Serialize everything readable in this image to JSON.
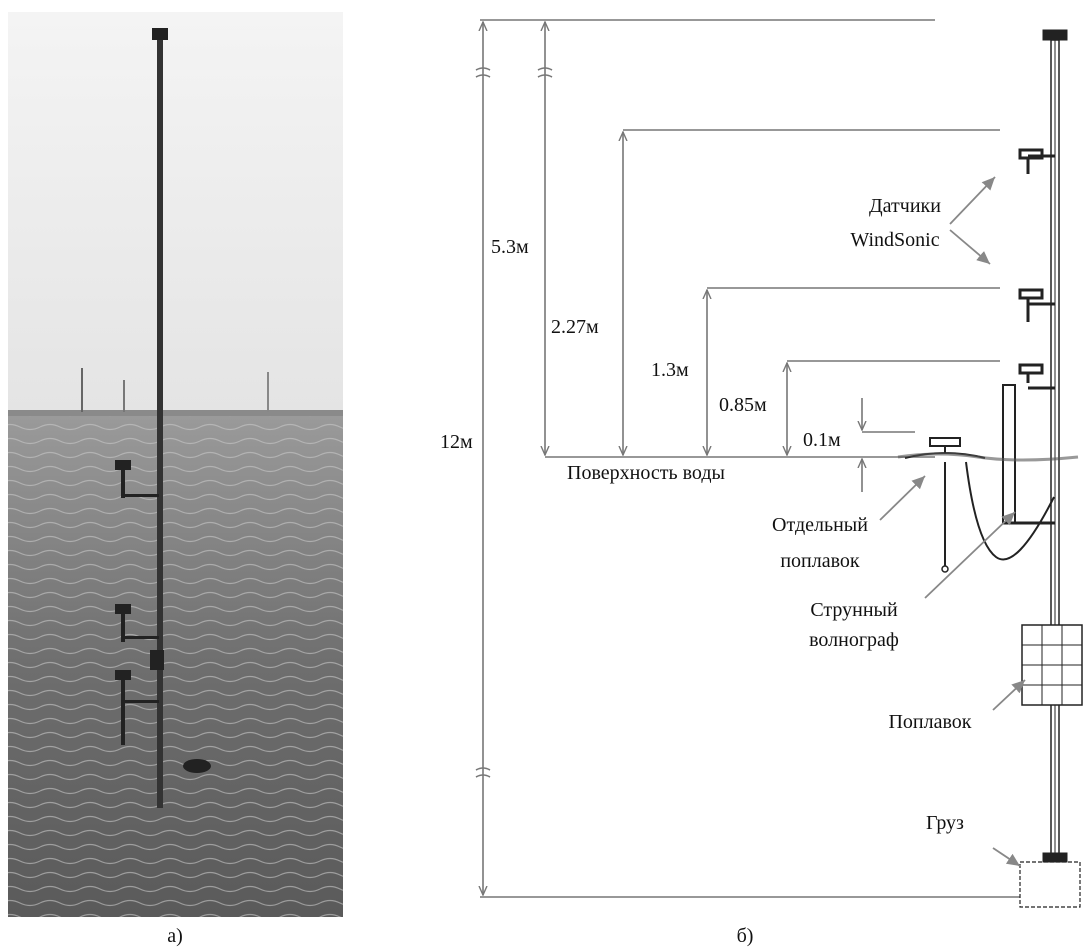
{
  "panels": {
    "photo": {
      "caption": "а)"
    },
    "diagram": {
      "caption": "б)",
      "dimensions": [
        "12м",
        "5.3м",
        "2.27м",
        "1.3м",
        "0.85м",
        "0.1м"
      ],
      "water_surface": "Поверхность воды",
      "labels": [
        {
          "lines": [
            "Датчики",
            "WindSonic"
          ]
        },
        {
          "lines": [
            "Отдельный",
            "поплавок"
          ]
        },
        {
          "lines": [
            "Струнный",
            "волнограф"
          ]
        },
        {
          "lines": [
            "Поплавок"
          ]
        },
        {
          "lines": [
            "Груз"
          ]
        }
      ]
    }
  }
}
